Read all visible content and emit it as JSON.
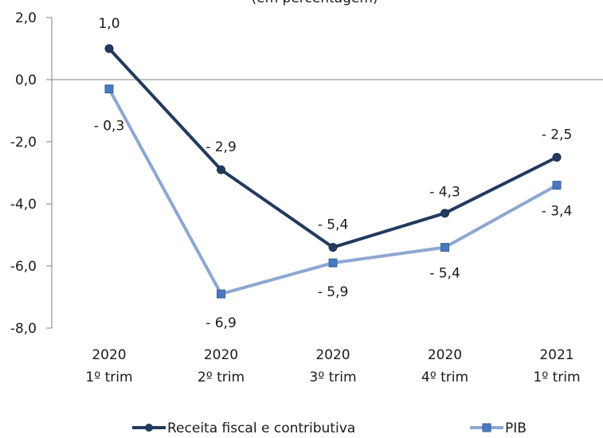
{
  "chart_data": {
    "type": "line",
    "title": "",
    "subtitle": "(em percentagem)",
    "xlabel": "",
    "ylabel": "",
    "categories": [
      [
        "2020",
        "1º trim"
      ],
      [
        "2020",
        "2º trim"
      ],
      [
        "2020",
        "3º trim"
      ],
      [
        "2020",
        "4º trim"
      ],
      [
        "2021",
        "1º trim"
      ]
    ],
    "ylim": [
      -8.0,
      2.0
    ],
    "yticks": [
      2.0,
      0.0,
      -2.0,
      -4.0,
      -6.0,
      -8.0
    ],
    "ytick_labels": [
      "2,0",
      "0,0",
      "-2,0",
      "-4,0",
      "-6,0",
      "-8,0"
    ],
    "grid": false,
    "legend_position": "bottom",
    "series": [
      {
        "name": "Receita fiscal e contributiva",
        "values": [
          1.0,
          -2.9,
          -5.4,
          -4.3,
          -2.5
        ],
        "labels": [
          "1,0",
          "- 2,9",
          "- 5,4",
          "- 4,3",
          "- 2,5"
        ],
        "color": "#233a5e",
        "marker": "circle"
      },
      {
        "name": "PIB",
        "values": [
          -0.3,
          -6.9,
          -5.9,
          -5.4,
          -3.4
        ],
        "labels": [
          "- 0,3",
          "- 6,9",
          "- 5,9",
          "- 5,4",
          "- 3,4"
        ],
        "color": "#8ea7d1",
        "marker": "square"
      }
    ]
  }
}
